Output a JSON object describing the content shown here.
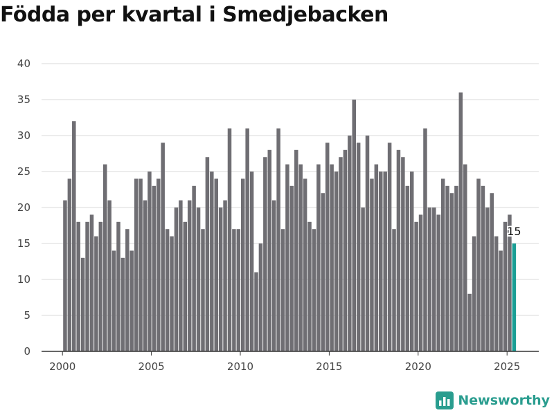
{
  "title": "Födda per kvartal i Smedjebacken",
  "brand": {
    "name": "Newsworthy",
    "logo": "newsworthy-logo-icon"
  },
  "colors": {
    "bar": "#6f6e73",
    "highlight": "#1a9e95",
    "grid": "#d9d9d9",
    "axis": "#333333"
  },
  "chart_data": {
    "type": "bar",
    "title": "Födda per kvartal i Smedjebacken",
    "xlabel": "",
    "ylabel": "",
    "ylim": [
      0,
      40
    ],
    "yticks": [
      0,
      5,
      10,
      15,
      20,
      25,
      30,
      35,
      40
    ],
    "xticks": [
      2000,
      2005,
      2010,
      2015,
      2020,
      2025
    ],
    "grid": true,
    "legend": "none",
    "start": {
      "year": 2000,
      "quarter": 1
    },
    "values": [
      21,
      24,
      32,
      18,
      13,
      18,
      19,
      16,
      18,
      26,
      21,
      14,
      18,
      13,
      17,
      14,
      24,
      24,
      21,
      25,
      23,
      24,
      29,
      17,
      16,
      20,
      21,
      18,
      21,
      23,
      20,
      17,
      27,
      25,
      24,
      20,
      21,
      31,
      17,
      17,
      24,
      31,
      25,
      11,
      15,
      27,
      28,
      21,
      31,
      17,
      26,
      23,
      28,
      26,
      24,
      18,
      17,
      26,
      22,
      29,
      26,
      25,
      27,
      28,
      30,
      35,
      29,
      20,
      30,
      24,
      26,
      25,
      25,
      29,
      17,
      28,
      27,
      23,
      25,
      18,
      19,
      31,
      20,
      20,
      19,
      24,
      23,
      22,
      23,
      36,
      26,
      8,
      16,
      24,
      23,
      20,
      22,
      16,
      14,
      18,
      19,
      15
    ],
    "highlight_index": 101,
    "value_labels": [
      {
        "index": 101,
        "text": "15"
      }
    ]
  }
}
